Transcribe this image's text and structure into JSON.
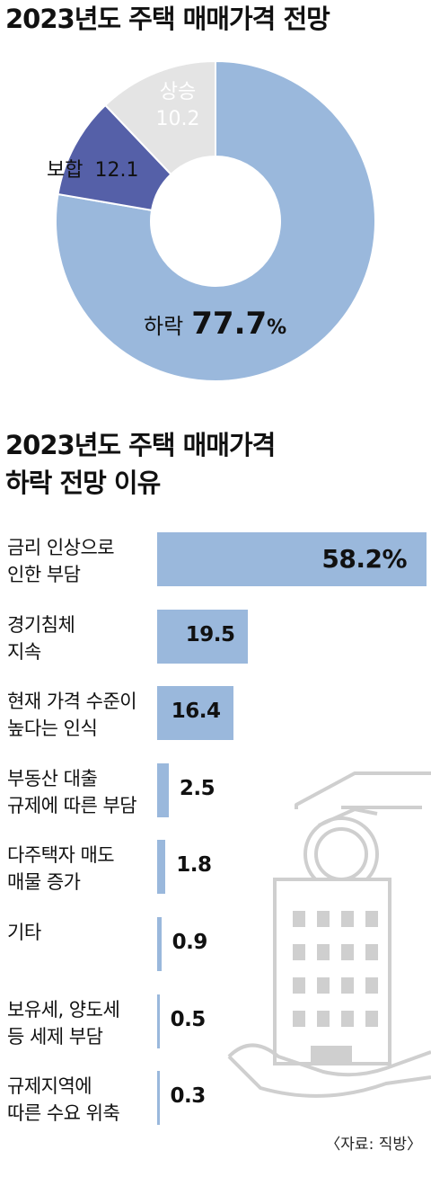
{
  "pie_title": "2023년도 주택 매매가격 전망",
  "bar_title_line1": "2023년도 주택 매매가격",
  "bar_title_line2": "하락 전망 이유",
  "source": "〈자료: 직방〉",
  "colors": {
    "down": "#9ab8dc",
    "up": "#5560a8",
    "flat": "#e4e4e4",
    "bar": "#9ab8dc"
  },
  "chart_data": [
    {
      "type": "pie",
      "title": "2023년도 주택 매매가격 전망",
      "categories": [
        "하락",
        "상승",
        "보합"
      ],
      "values": [
        77.7,
        10.2,
        12.1
      ],
      "labels": [
        {
          "name": "하락",
          "value": "77.7",
          "unit": "%"
        },
        {
          "name": "상승",
          "value": "10.2"
        },
        {
          "name": "보합",
          "value": "12.1"
        }
      ]
    },
    {
      "type": "bar",
      "title": "2023년도 주택 매매가격 하락 전망 이유",
      "unit": "%",
      "categories": [
        [
          "금리 인상으로",
          "인한 부담"
        ],
        [
          "경기침체",
          "지속"
        ],
        [
          "현재 가격 수준이",
          "높다는 인식"
        ],
        [
          "부동산 대출",
          "규제에 따른 부담"
        ],
        [
          "다주택자 매도",
          "매물 증가"
        ],
        [
          "기타"
        ],
        [
          "보유세, 양도세",
          "등 세제 부담"
        ],
        [
          "규제지역에",
          "따른 수요 위축"
        ]
      ],
      "values": [
        58.2,
        19.5,
        16.4,
        2.5,
        1.8,
        0.9,
        0.5,
        0.3
      ],
      "value_labels": [
        "58.2%",
        "19.5",
        "16.4",
        "2.5",
        "1.8",
        "0.9",
        "0.5",
        "0.3"
      ]
    }
  ]
}
